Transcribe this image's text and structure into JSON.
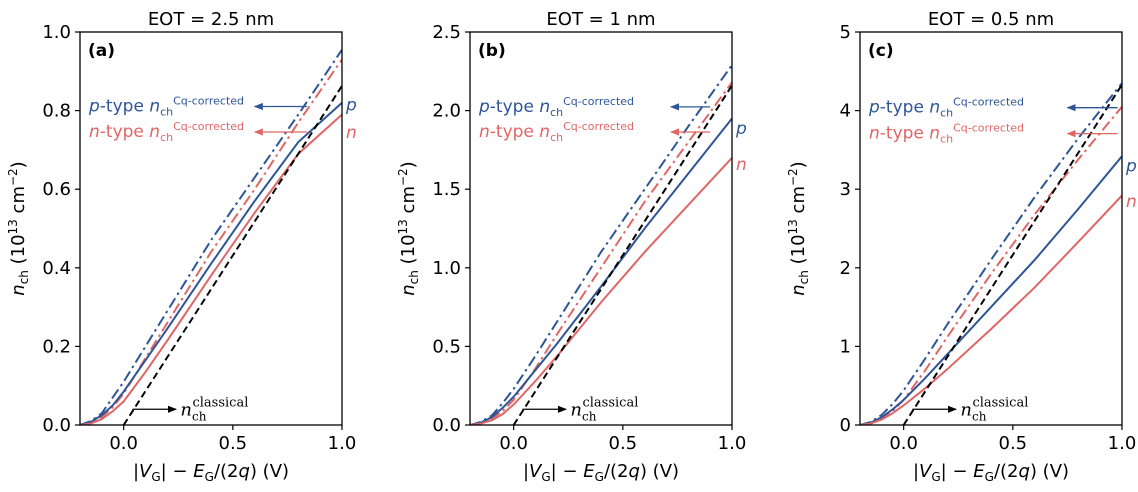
{
  "colors": {
    "p": "#2e5597",
    "n": "#e06666",
    "classical": "#000000"
  },
  "common": {
    "xlabel": "|V_G| − E_G/(2q) (V)",
    "ylabel": "n_ch (10^13 cm^−2)",
    "p_annotation": "p-type n_ch^Cq-corrected",
    "n_annotation": "n-type n_ch^Cq-corrected",
    "classical_annotation": "n_ch^classical",
    "p_label": "p",
    "n_label": "n"
  },
  "chart_data": [
    {
      "type": "line",
      "panel": "(a)",
      "title": "EOT = 2.5 nm",
      "xlim": [
        -0.2,
        1.0
      ],
      "ylim": [
        0,
        1.0
      ],
      "xticks": [
        "0.0",
        "0.5",
        "1.0"
      ],
      "yticks": [
        "0.0",
        "0.2",
        "0.4",
        "0.6",
        "0.8",
        "1.0"
      ],
      "series": [
        {
          "name": "p-type n_ch Cq-corrected",
          "style": "dashdot",
          "color": "p",
          "x": [
            -0.2,
            -0.15,
            -0.1,
            -0.05,
            0.0,
            0.1,
            0.2,
            0.4,
            0.6,
            0.8,
            1.0
          ],
          "y": [
            0.0,
            0.01,
            0.03,
            0.07,
            0.11,
            0.2,
            0.29,
            0.47,
            0.63,
            0.79,
            0.955
          ]
        },
        {
          "name": "n-type n_ch Cq-corrected",
          "style": "dashdot",
          "color": "n",
          "x": [
            -0.2,
            -0.15,
            -0.1,
            -0.05,
            0.0,
            0.1,
            0.2,
            0.4,
            0.6,
            0.8,
            1.0
          ],
          "y": [
            0.0,
            0.005,
            0.02,
            0.045,
            0.08,
            0.17,
            0.26,
            0.44,
            0.6,
            0.77,
            0.93
          ]
        },
        {
          "name": "p",
          "style": "solid",
          "color": "p",
          "x": [
            -0.2,
            -0.15,
            -0.1,
            -0.05,
            0.0,
            0.1,
            0.2,
            0.4,
            0.6,
            0.8,
            1.0
          ],
          "y": [
            0.0,
            0.008,
            0.025,
            0.05,
            0.085,
            0.165,
            0.245,
            0.41,
            0.57,
            0.72,
            0.82
          ]
        },
        {
          "name": "n",
          "style": "solid",
          "color": "n",
          "x": [
            -0.2,
            -0.15,
            -0.1,
            -0.05,
            0.0,
            0.1,
            0.2,
            0.4,
            0.6,
            0.8,
            1.0
          ],
          "y": [
            0.0,
            0.004,
            0.015,
            0.035,
            0.06,
            0.135,
            0.215,
            0.38,
            0.54,
            0.69,
            0.79
          ]
        },
        {
          "name": "n_ch classical",
          "style": "dashed",
          "color": "classical",
          "x": [
            0.0,
            1.0
          ],
          "y": [
            0.0,
            0.863
          ]
        }
      ],
      "anno_y": {
        "p_text": 0.813,
        "n_text": 0.748,
        "p_label": 0.815,
        "n_label": 0.745
      },
      "p_arrow_x": [
        0.84,
        0.6
      ],
      "n_arrow_x": [
        0.84,
        0.6
      ],
      "classical_text_y": 0.04
    },
    {
      "type": "line",
      "panel": "(b)",
      "title": "EOT = 1 nm",
      "xlim": [
        -0.2,
        1.0
      ],
      "ylim": [
        0,
        2.5
      ],
      "xticks": [
        "0.0",
        "0.5",
        "1.0"
      ],
      "yticks": [
        "0.0",
        "0.5",
        "1.0",
        "1.5",
        "2.0",
        "2.5"
      ],
      "series": [
        {
          "name": "p-type n_ch Cq-corrected",
          "style": "dashdot",
          "color": "p",
          "x": [
            -0.2,
            -0.15,
            -0.1,
            -0.05,
            0.0,
            0.1,
            0.2,
            0.4,
            0.6,
            0.8,
            1.0
          ],
          "y": [
            0.0,
            0.02,
            0.06,
            0.14,
            0.23,
            0.44,
            0.66,
            1.1,
            1.5,
            1.9,
            2.29
          ]
        },
        {
          "name": "n-type n_ch Cq-corrected",
          "style": "dashdot",
          "color": "n",
          "x": [
            -0.2,
            -0.15,
            -0.1,
            -0.05,
            0.0,
            0.1,
            0.2,
            0.4,
            0.6,
            0.8,
            1.0
          ],
          "y": [
            0.0,
            0.01,
            0.04,
            0.09,
            0.16,
            0.36,
            0.58,
            1.0,
            1.42,
            1.8,
            2.18
          ]
        },
        {
          "name": "p",
          "style": "solid",
          "color": "p",
          "x": [
            -0.2,
            -0.15,
            -0.1,
            -0.05,
            0.0,
            0.1,
            0.2,
            0.4,
            0.6,
            0.8,
            1.0
          ],
          "y": [
            0.0,
            0.015,
            0.05,
            0.11,
            0.18,
            0.35,
            0.52,
            0.88,
            1.25,
            1.6,
            1.95
          ]
        },
        {
          "name": "n",
          "style": "solid",
          "color": "n",
          "x": [
            -0.2,
            -0.15,
            -0.1,
            -0.05,
            0.0,
            0.1,
            0.2,
            0.4,
            0.6,
            0.8,
            1.0
          ],
          "y": [
            0.0,
            0.01,
            0.03,
            0.07,
            0.13,
            0.28,
            0.44,
            0.78,
            1.1,
            1.4,
            1.7
          ]
        },
        {
          "name": "n_ch classical",
          "style": "dashed",
          "color": "classical",
          "x": [
            0.0,
            1.0
          ],
          "y": [
            0.0,
            2.16
          ]
        }
      ],
      "anno_y": {
        "p_text": 2.03,
        "n_text": 1.87,
        "p_label": 1.89,
        "n_label": 1.66
      },
      "p_arrow_x": [
        0.9,
        0.72
      ],
      "n_arrow_x": [
        0.9,
        0.72
      ],
      "classical_text_y": 0.1
    },
    {
      "type": "line",
      "panel": "(c)",
      "title": "EOT = 0.5 nm",
      "xlim": [
        -0.2,
        1.0
      ],
      "ylim": [
        0,
        5
      ],
      "xticks": [
        "0.0",
        "0.5",
        "1.0"
      ],
      "yticks": [
        "0",
        "1",
        "2",
        "3",
        "4",
        "5"
      ],
      "series": [
        {
          "name": "p-type n_ch Cq-corrected",
          "style": "dashdot",
          "color": "p",
          "x": [
            -0.2,
            -0.15,
            -0.1,
            -0.05,
            0.0,
            0.1,
            0.2,
            0.4,
            0.6,
            0.8,
            1.0
          ],
          "y": [
            0.0,
            0.04,
            0.13,
            0.27,
            0.44,
            0.85,
            1.28,
            2.1,
            2.9,
            3.65,
            4.35
          ]
        },
        {
          "name": "n-type n_ch Cq-corrected",
          "style": "dashdot",
          "color": "n",
          "x": [
            -0.2,
            -0.15,
            -0.1,
            -0.05,
            0.0,
            0.1,
            0.2,
            0.4,
            0.6,
            0.8,
            1.0
          ],
          "y": [
            0.0,
            0.02,
            0.08,
            0.18,
            0.32,
            0.7,
            1.12,
            1.92,
            2.68,
            3.38,
            4.05
          ]
        },
        {
          "name": "p",
          "style": "solid",
          "color": "p",
          "x": [
            -0.2,
            -0.15,
            -0.1,
            -0.05,
            0.0,
            0.1,
            0.2,
            0.4,
            0.6,
            0.8,
            1.0
          ],
          "y": [
            0.0,
            0.03,
            0.1,
            0.2,
            0.32,
            0.6,
            0.9,
            1.5,
            2.1,
            2.75,
            3.42
          ]
        },
        {
          "name": "n",
          "style": "solid",
          "color": "n",
          "x": [
            -0.2,
            -0.15,
            -0.1,
            -0.05,
            0.0,
            0.1,
            0.2,
            0.4,
            0.6,
            0.8,
            1.0
          ],
          "y": [
            0.0,
            0.02,
            0.07,
            0.15,
            0.25,
            0.47,
            0.71,
            1.22,
            1.75,
            2.33,
            2.92
          ]
        },
        {
          "name": "n_ch classical",
          "style": "dashed",
          "color": "classical",
          "x": [
            0.0,
            1.0
          ],
          "y": [
            0.0,
            4.33
          ]
        }
      ],
      "anno_y": {
        "p_text": 4.05,
        "n_text": 3.72,
        "p_label": 3.3,
        "n_label": 2.85
      },
      "p_arrow_x": [
        0.98,
        0.75
      ],
      "n_arrow_x": [
        0.98,
        0.75
      ],
      "classical_text_y": 0.2
    }
  ]
}
